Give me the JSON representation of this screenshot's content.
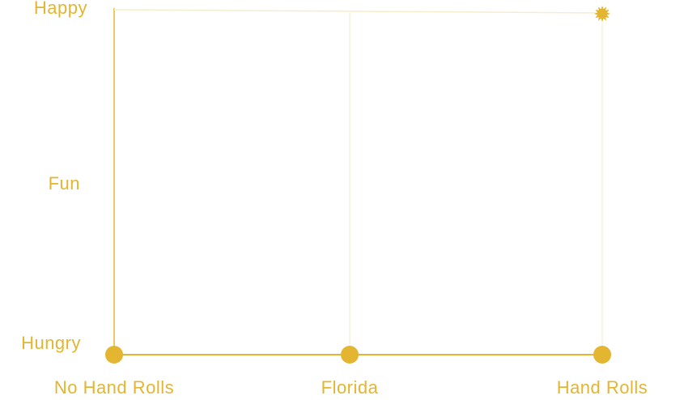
{
  "chart_data": {
    "type": "line",
    "x_categories": [
      "No Hand Rolls",
      "Florida",
      "Hand Rolls"
    ],
    "y_categories": [
      "Hungry",
      "Fun",
      "Happy"
    ],
    "series": [
      {
        "points": [
          {
            "x": "No Hand Rolls",
            "y": "Hungry"
          },
          {
            "x": "Florida",
            "y": "Hungry"
          },
          {
            "x": "Hand Rolls",
            "y": "Hungry"
          }
        ]
      },
      {
        "points": [
          {
            "x": "No Hand Rolls",
            "y": "Happy"
          },
          {
            "x": "Hand Rolls",
            "y": "Happy"
          }
        ],
        "end_marker": "starburst"
      }
    ],
    "grid": true,
    "colors": {
      "accent": "#E3B530",
      "grid": "#F6EDCF"
    }
  }
}
